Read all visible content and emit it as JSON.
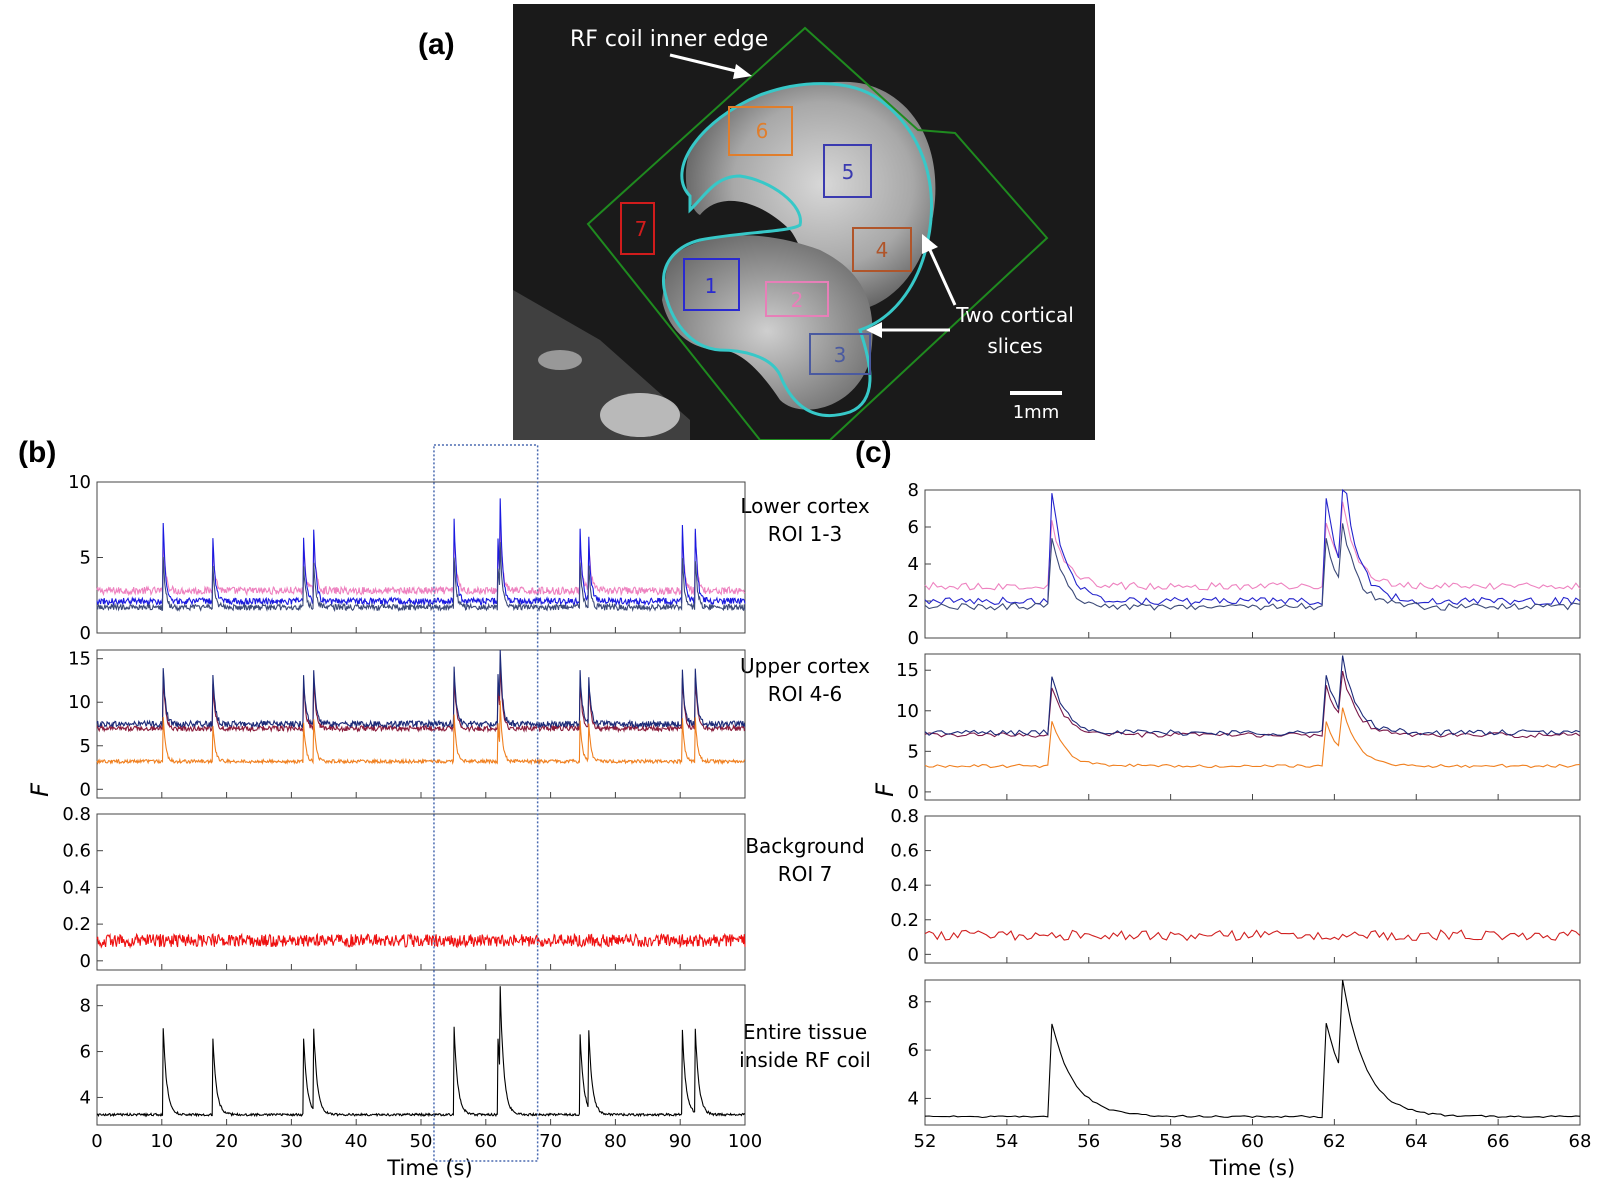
{
  "panel_labels": {
    "a": "(a)",
    "b": "(b)",
    "c": "(c)"
  },
  "image_panel": {
    "annotations": {
      "rf_coil": "RF coil inner edge",
      "cortical_line1": "Two cortical",
      "cortical_line2": "slices",
      "scalebar": "1mm"
    },
    "rois": [
      {
        "label": "1",
        "color": "#2a2ad0"
      },
      {
        "label": "2",
        "color": "#e77fb8"
      },
      {
        "label": "3",
        "color": "#4a5aa0"
      },
      {
        "label": "4",
        "color": "#b0552a"
      },
      {
        "label": "5",
        "color": "#3a3ab0"
      },
      {
        "label": "6",
        "color": "#e07e2c"
      },
      {
        "label": "7",
        "color": "#d01c1c"
      }
    ],
    "colors": {
      "coil": "#1f8a1f",
      "tissue_outline": "#37c8c8",
      "background": "#1a1a1a"
    }
  },
  "captions": {
    "lower": [
      "Lower cortex",
      "ROI 1-3"
    ],
    "upper": [
      "Upper cortex",
      "ROI 4-6"
    ],
    "background": [
      "Background",
      "ROI 7"
    ],
    "entire": [
      "Entire tissue",
      "inside RF coil"
    ]
  },
  "chart_data": [
    {
      "type": "line",
      "panel": "b",
      "ylabel": "F",
      "xlabel": "Time (s)",
      "xlim": [
        0,
        100
      ],
      "xticks": [
        0,
        10,
        20,
        30,
        40,
        50,
        60,
        70,
        80,
        90,
        100
      ],
      "highlight_window": [
        52,
        68
      ],
      "event_times": [
        10.2,
        17.8,
        31.8,
        33.4,
        55.1,
        61.8,
        62.2,
        74.5,
        75.8,
        90.3,
        92.3
      ],
      "subplots": [
        {
          "name": "lower",
          "ylim": [
            0,
            10
          ],
          "yticks": [
            0,
            5,
            10
          ],
          "series": [
            {
              "name": "ROI 2",
              "color": "#ee82c0",
              "baseline": 2.8,
              "peak": 4.0,
              "noise": 0.25
            },
            {
              "name": "ROI 1",
              "color": "#1a1ae0",
              "baseline": 2.1,
              "peak": 5.5,
              "noise": 0.22
            },
            {
              "name": "ROI 3",
              "color": "#3c4a78",
              "baseline": 1.7,
              "peak": 3.5,
              "noise": 0.2
            }
          ]
        },
        {
          "name": "upper",
          "ylim": [
            -1,
            16
          ],
          "yticks": [
            0,
            5,
            10,
            15
          ],
          "series": [
            {
              "name": "ROI 4",
              "color": "#8a1a3a",
              "baseline": 7.0,
              "peak": 6.5,
              "noise": 0.3
            },
            {
              "name": "ROI 5",
              "color": "#1c2a78",
              "baseline": 7.5,
              "peak": 7.0,
              "noise": 0.35
            },
            {
              "name": "ROI 6",
              "color": "#f08020",
              "baseline": 3.2,
              "peak": 5.5,
              "noise": 0.2
            }
          ]
        },
        {
          "name": "background",
          "ylim": [
            -0.05,
            0.8
          ],
          "yticks": [
            0,
            0.2,
            0.4,
            0.6,
            0.8
          ],
          "series": [
            {
              "name": "ROI 7",
              "color": "#ee1111",
              "baseline": 0.11,
              "peak": 0.0,
              "noise": 0.035
            }
          ]
        },
        {
          "name": "entire",
          "ylim": [
            2.8,
            8.9
          ],
          "yticks": [
            4,
            6,
            8
          ],
          "series": [
            {
              "name": "Entire tissue",
              "color": "#000000",
              "baseline": 3.25,
              "peak": 3.9,
              "noise": 0.05
            }
          ]
        }
      ]
    },
    {
      "type": "line",
      "panel": "c",
      "ylabel": "F",
      "xlabel": "Time (s)",
      "xlim": [
        52,
        68
      ],
      "xticks": [
        52,
        54,
        56,
        58,
        60,
        62,
        64,
        66,
        68
      ],
      "event_times": [
        55.1,
        61.8,
        62.2
      ],
      "subplots": [
        {
          "name": "lower",
          "ylim": [
            0,
            8
          ],
          "yticks": [
            0,
            2,
            4,
            6,
            8
          ],
          "series": [
            {
              "name": "ROI 2",
              "color": "#ee82c0",
              "baseline": 2.8,
              "peak": 3.5,
              "noise": 0.2
            },
            {
              "name": "ROI 1",
              "color": "#2424cc",
              "baseline": 2.0,
              "peak": 5.7,
              "noise": 0.2
            },
            {
              "name": "ROI 3",
              "color": "#3c4a78",
              "baseline": 1.7,
              "peak": 3.5,
              "noise": 0.2
            }
          ]
        },
        {
          "name": "upper",
          "ylim": [
            -1,
            17
          ],
          "yticks": [
            0,
            5,
            10,
            15
          ],
          "series": [
            {
              "name": "ROI 4",
              "color": "#7a1a4a",
              "baseline": 7.0,
              "peak": 6.0,
              "noise": 0.3
            },
            {
              "name": "ROI 5",
              "color": "#1c2a78",
              "baseline": 7.3,
              "peak": 7.0,
              "noise": 0.35
            },
            {
              "name": "ROI 6",
              "color": "#f08020",
              "baseline": 3.2,
              "peak": 5.5,
              "noise": 0.2
            }
          ]
        },
        {
          "name": "background",
          "ylim": [
            -0.05,
            0.8
          ],
          "yticks": [
            0,
            0.2,
            0.4,
            0.6,
            0.8
          ],
          "series": [
            {
              "name": "ROI 7",
              "color": "#d02020",
              "baseline": 0.11,
              "peak": 0.0,
              "noise": 0.03
            }
          ]
        },
        {
          "name": "entire",
          "ylim": [
            2.9,
            8.9
          ],
          "yticks": [
            4,
            6,
            8
          ],
          "series": [
            {
              "name": "Entire tissue",
              "color": "#000000",
              "baseline": 3.25,
              "peak": 3.85,
              "noise": 0.04
            }
          ]
        }
      ]
    }
  ]
}
